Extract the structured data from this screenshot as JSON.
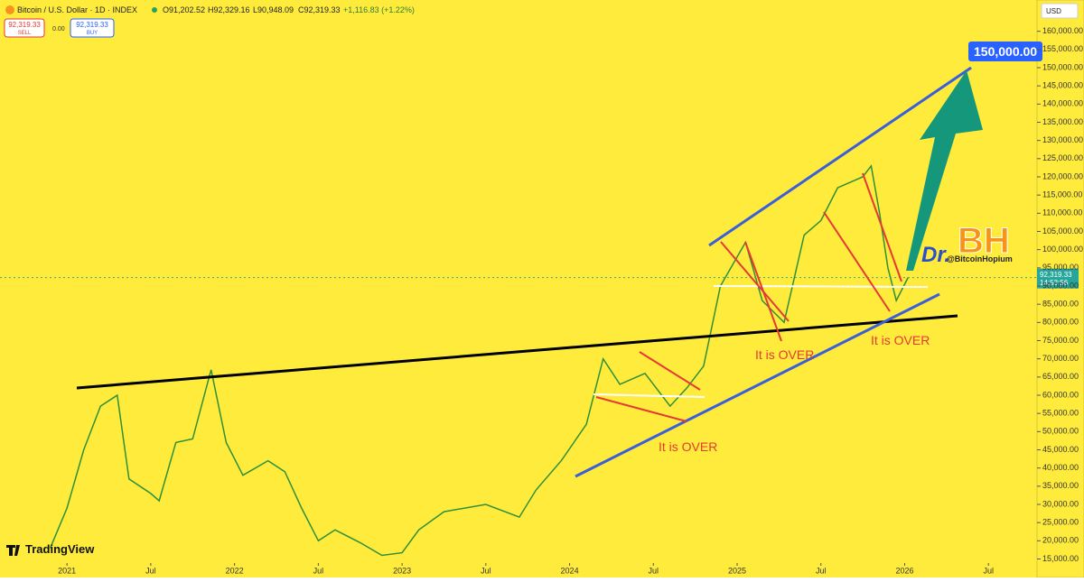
{
  "header": {
    "symbol": "Bitcoin / U.S. Dollar · 1D · INDEX",
    "open": "O91,202.52",
    "high": "H92,329.16",
    "low": "L90,948.09",
    "close": "C92,319.33",
    "change": "+1,116.83 (+1.22%)",
    "sell_price": "92,319.33",
    "sell": "SELL",
    "spread": "0.00",
    "buy_price": "92,319.33",
    "buy": "BUY",
    "currency": "USD"
  },
  "price_tag": {
    "price": "92,319.33",
    "countdown": "14:53:56"
  },
  "annotations": {
    "target": "150,000.00",
    "over1": "It is OVER",
    "over2": "It is OVER",
    "over3": "It is OVER",
    "logo_dr": "Dr.",
    "logo_bh": "BH",
    "logo_handle": "@BitcoinHopium",
    "brand": "TradingView"
  },
  "chart_data": {
    "type": "line",
    "grid": false,
    "xlim": [
      2020.6,
      2026.79
    ],
    "xticks": [
      {
        "value": 2021,
        "label": "2021"
      },
      {
        "value": 2021.5,
        "label": "Jul"
      },
      {
        "value": 2022,
        "label": "2022"
      },
      {
        "value": 2022.5,
        "label": "Jul"
      },
      {
        "value": 2023,
        "label": "2023"
      },
      {
        "value": 2023.5,
        "label": "Jul"
      },
      {
        "value": 2024,
        "label": "2024"
      },
      {
        "value": 2024.5,
        "label": "Jul"
      },
      {
        "value": 2025,
        "label": "2025"
      },
      {
        "value": 2025.5,
        "label": "Jul"
      },
      {
        "value": 2026,
        "label": "2026"
      },
      {
        "value": 2026.5,
        "label": "Jul"
      }
    ],
    "ylim": [
      15000,
      165000
    ],
    "yticks": [
      {
        "value": 15000,
        "label": "15,000.00"
      },
      {
        "value": 20000,
        "label": "20,000.00"
      },
      {
        "value": 25000,
        "label": "25,000.00"
      },
      {
        "value": 30000,
        "label": "30,000.00"
      },
      {
        "value": 35000,
        "label": "35,000.00"
      },
      {
        "value": 40000,
        "label": "40,000.00"
      },
      {
        "value": 45000,
        "label": "45,000.00"
      },
      {
        "value": 50000,
        "label": "50,000.00"
      },
      {
        "value": 55000,
        "label": "55,000.00"
      },
      {
        "value": 60000,
        "label": "60,000.00"
      },
      {
        "value": 65000,
        "label": "65,000.00"
      },
      {
        "value": 70000,
        "label": "70,000.00"
      },
      {
        "value": 75000,
        "label": "75,000.00"
      },
      {
        "value": 80000,
        "label": "80,000.00"
      },
      {
        "value": 85000,
        "label": "85,000.00"
      },
      {
        "value": 90000,
        "label": "90,000.00"
      },
      {
        "value": 95000,
        "label": "95,000.00"
      },
      {
        "value": 100000,
        "label": "100,000.00"
      },
      {
        "value": 105000,
        "label": "105,000.00"
      },
      {
        "value": 110000,
        "label": "110,000.00"
      },
      {
        "value": 115000,
        "label": "115,000.00"
      },
      {
        "value": 120000,
        "label": "120,000.00"
      },
      {
        "value": 125000,
        "label": "125,000.00"
      },
      {
        "value": 130000,
        "label": "130,000.00"
      },
      {
        "value": 135000,
        "label": "135,000.00"
      },
      {
        "value": 140000,
        "label": "140,000.00"
      },
      {
        "value": 145000,
        "label": "145,000.00"
      },
      {
        "value": 150000,
        "label": "150,000.00"
      },
      {
        "value": 155000,
        "label": "155,000.00"
      },
      {
        "value": 160000,
        "label": "160,000.00"
      }
    ],
    "x": [
      2020.9,
      2021.0,
      2021.1,
      2021.2,
      2021.3,
      2021.37,
      2021.5,
      2021.55,
      2021.65,
      2021.75,
      2021.86,
      2021.95,
      2022.05,
      2022.2,
      2022.3,
      2022.4,
      2022.5,
      2022.6,
      2022.75,
      2022.88,
      2023.0,
      2023.1,
      2023.25,
      2023.5,
      2023.7,
      2023.8,
      2023.95,
      2024.1,
      2024.2,
      2024.3,
      2024.45,
      2024.6,
      2024.7,
      2024.8,
      2024.9,
      2025.0,
      2025.05,
      2025.15,
      2025.28,
      2025.4,
      2025.5,
      2025.6,
      2025.75,
      2025.8,
      2025.85,
      2025.9,
      2025.95,
      2026.02
    ],
    "series": [
      {
        "color": "#2f8f3a",
        "values": [
          18000,
          29000,
          45000,
          57000,
          60000,
          37000,
          33000,
          31000,
          47000,
          48000,
          67000,
          47000,
          38000,
          42000,
          39000,
          29000,
          20000,
          23000,
          19500,
          16000,
          16700,
          23000,
          28000,
          30000,
          26500,
          34000,
          42000,
          52000,
          70000,
          63000,
          66000,
          57000,
          62000,
          68000,
          90000,
          98000,
          102000,
          86000,
          80000,
          104000,
          108000,
          117000,
          120000,
          123000,
          110000,
          95000,
          86000,
          92319.33
        ]
      }
    ]
  }
}
